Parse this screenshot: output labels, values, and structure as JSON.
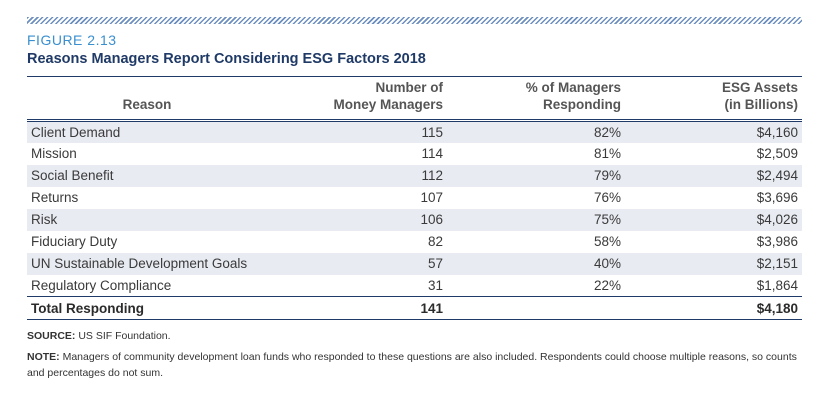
{
  "figure": {
    "label": "FIGURE 2.13",
    "title": "Reasons Managers Report Considering ESG Factors 2018"
  },
  "table": {
    "headers": {
      "reason": "Reason",
      "managers_1": "Number of",
      "managers_2": "Money Managers",
      "pct_1": "% of Managers",
      "pct_2": "Responding",
      "assets_1": "ESG Assets",
      "assets_2": "(in Billions)"
    },
    "rows": [
      {
        "reason": "Client Demand",
        "managers": "115",
        "pct": "82%",
        "assets": "$4,160"
      },
      {
        "reason": "Mission",
        "managers": "114",
        "pct": "81%",
        "assets": "$2,509"
      },
      {
        "reason": "Social Benefit",
        "managers": "112",
        "pct": "79%",
        "assets": "$2,494"
      },
      {
        "reason": "Returns",
        "managers": "107",
        "pct": "76%",
        "assets": "$3,696"
      },
      {
        "reason": "Risk",
        "managers": "106",
        "pct": "75%",
        "assets": "$4,026"
      },
      {
        "reason": "Fiduciary Duty",
        "managers": "82",
        "pct": "58%",
        "assets": "$3,986"
      },
      {
        "reason": "UN Sustainable Development Goals",
        "managers": "57",
        "pct": "40%",
        "assets": "$2,151"
      },
      {
        "reason": "Regulatory Compliance",
        "managers": "31",
        "pct": "22%",
        "assets": "$1,864"
      }
    ],
    "total": {
      "reason": "Total Responding",
      "managers": "141",
      "pct": "",
      "assets": "$4,180"
    }
  },
  "source": {
    "label": "SOURCE:",
    "text": " US SIF Foundation."
  },
  "note": {
    "label": "NOTE:",
    "text": " Managers of community development loan funds who responded to these questions are also included. Respondents could choose multiple reasons, so counts and percentages do not sum."
  },
  "colors": {
    "accent": "#3a8fcf",
    "title": "#1f3a66",
    "row_shade": "#e8ebf2"
  }
}
